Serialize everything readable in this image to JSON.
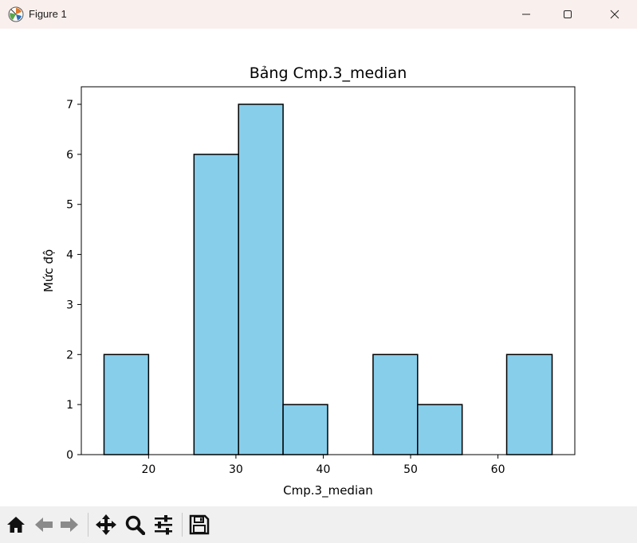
{
  "window": {
    "title": "Figure 1"
  },
  "toolbar": {
    "buttons": [
      {
        "name": "home-icon"
      },
      {
        "name": "back-icon"
      },
      {
        "name": "forward-icon"
      },
      {
        "name": "pan-icon"
      },
      {
        "name": "zoom-icon"
      },
      {
        "name": "configure-subplots-icon"
      },
      {
        "name": "save-icon"
      }
    ]
  },
  "chart_data": {
    "type": "bar",
    "title": "Bảng Cmp.3_median",
    "xlabel": "Cmp.3_median",
    "ylabel": "Mức độ",
    "bins": [
      {
        "x0": 14.9,
        "x1": 20.0,
        "count": 2
      },
      {
        "x0": 20.0,
        "x1": 25.2,
        "count": 0
      },
      {
        "x0": 25.2,
        "x1": 30.3,
        "count": 6
      },
      {
        "x0": 30.3,
        "x1": 35.4,
        "count": 7
      },
      {
        "x0": 35.4,
        "x1": 40.5,
        "count": 1
      },
      {
        "x0": 40.5,
        "x1": 45.7,
        "count": 0
      },
      {
        "x0": 45.7,
        "x1": 50.8,
        "count": 2
      },
      {
        "x0": 50.8,
        "x1": 55.9,
        "count": 1
      },
      {
        "x0": 55.9,
        "x1": 61.0,
        "count": 0
      },
      {
        "x0": 61.0,
        "x1": 66.2,
        "count": 2
      }
    ],
    "xlim": [
      12.3,
      68.8
    ],
    "ylim": [
      0,
      7.35
    ],
    "xticks": [
      20,
      30,
      40,
      50,
      60
    ],
    "yticks": [
      0,
      1,
      2,
      3,
      4,
      5,
      6,
      7
    ],
    "bar_color": "#87ceeb",
    "edge_color": "#000000",
    "grid": false
  }
}
